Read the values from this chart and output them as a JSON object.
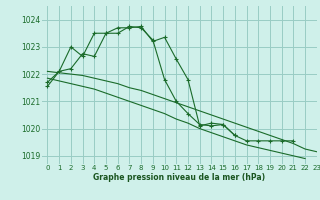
{
  "bg_color": "#cff0ea",
  "grid_color": "#99ccc4",
  "line_color": "#1a6b2a",
  "xlabel": "Graphe pression niveau de la mer (hPa)",
  "xlabel_color": "#1a5520",
  "ylim": [
    1018.7,
    1024.5
  ],
  "xlim": [
    -0.5,
    23
  ],
  "yticks": [
    1019,
    1020,
    1021,
    1022,
    1023,
    1024
  ],
  "xticks": [
    0,
    1,
    2,
    3,
    4,
    5,
    6,
    7,
    8,
    9,
    10,
    11,
    12,
    13,
    14,
    15,
    16,
    17,
    18,
    19,
    20,
    21,
    22,
    23
  ],
  "series": [
    {
      "x": [
        0,
        1,
        2,
        3,
        4,
        5,
        6,
        7,
        8,
        9,
        10,
        11,
        12,
        13,
        14,
        15,
        16,
        17,
        18,
        19,
        20,
        21
      ],
      "y": [
        1021.55,
        1022.1,
        1022.2,
        1022.75,
        1022.65,
        1023.5,
        1023.5,
        1023.75,
        1023.7,
        1023.25,
        1021.8,
        1021.0,
        1020.55,
        1020.15,
        1020.1,
        1020.15,
        1019.75,
        1019.55,
        1019.55,
        1019.55,
        1019.55,
        1019.55
      ],
      "has_markers": true
    },
    {
      "x": [
        0,
        1,
        2,
        3,
        4,
        5,
        6,
        7,
        8,
        9,
        10,
        11,
        12,
        13,
        14,
        15,
        16
      ],
      "y": [
        1021.7,
        1022.1,
        1023.0,
        1022.65,
        1023.5,
        1023.5,
        1023.7,
        1023.7,
        1023.75,
        1023.2,
        1023.35,
        1022.55,
        1021.8,
        1020.1,
        1020.2,
        1020.15,
        1019.75
      ],
      "has_markers": true
    },
    {
      "x": [
        0,
        1,
        2,
        3,
        4,
        5,
        6,
        7,
        8,
        9,
        10,
        11,
        12,
        13,
        14,
        15,
        16,
        17,
        18,
        19,
        20,
        21,
        22,
        23
      ],
      "y": [
        1021.85,
        1021.75,
        1021.65,
        1021.55,
        1021.45,
        1021.3,
        1021.15,
        1021.0,
        1020.85,
        1020.7,
        1020.55,
        1020.35,
        1020.2,
        1020.0,
        1019.85,
        1019.7,
        1019.55,
        1019.4,
        1019.3,
        1019.2,
        1019.1,
        1019.0,
        1018.9,
        null
      ],
      "has_markers": false
    },
    {
      "x": [
        0,
        1,
        2,
        3,
        4,
        5,
        6,
        7,
        8,
        9,
        10,
        11,
        12,
        13,
        14,
        15,
        16,
        17,
        18,
        19,
        20,
        21,
        22,
        23
      ],
      "y": [
        1022.1,
        1022.05,
        1022.0,
        1021.95,
        1021.85,
        1021.75,
        1021.65,
        1021.5,
        1021.4,
        1021.25,
        1021.1,
        1020.95,
        1020.8,
        1020.65,
        1020.5,
        1020.35,
        1020.2,
        1020.05,
        1019.9,
        1019.75,
        1019.6,
        1019.45,
        1019.25,
        1019.15
      ],
      "has_markers": false
    }
  ]
}
